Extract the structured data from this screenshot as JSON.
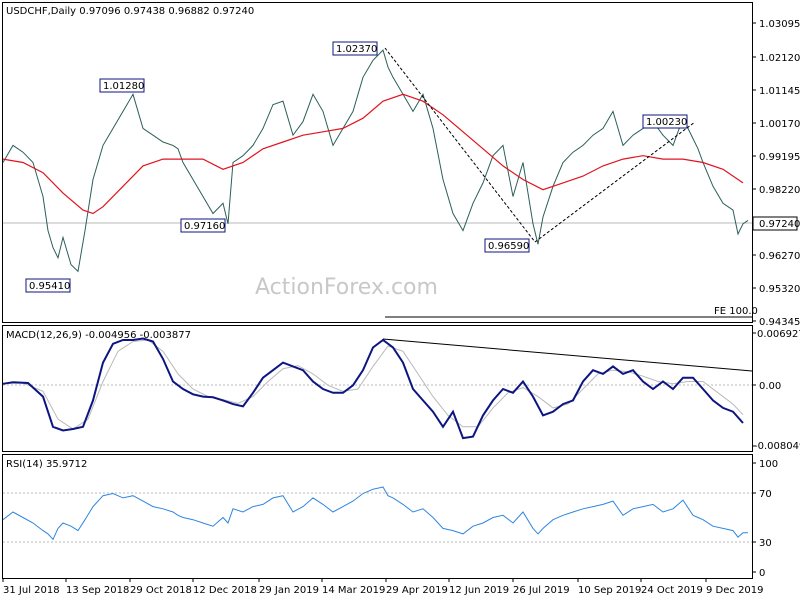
{
  "colors": {
    "price": "#2b5f5a",
    "ma": "#e0141e",
    "macd": "#0c1580",
    "signal": "#b9b9b9",
    "rsi": "#2f86e0",
    "lines": "#000000",
    "watermark": "#c8c8c8"
  },
  "chart_data": [
    {
      "type": "line",
      "title": "USDCHF,Daily  0.97096 0.97438 0.96882 0.97240",
      "watermark": "ActionForex.com",
      "ylim": [
        0.94345,
        1.03095
      ],
      "y_ticks": [
        "1.03095",
        "1.02120",
        "1.01145",
        "1.00170",
        "0.99195",
        "0.98220",
        "0.97245",
        "0.96270",
        "0.95320",
        "0.94345"
      ],
      "x_ticks": [
        "31 Jul 2018",
        "13 Sep 2018",
        "29 Oct 2018",
        "12 Dec 2018",
        "29 Jan 2019",
        "14 Mar 2019",
        "29 Apr 2019",
        "12 Jun 2019",
        "26 Jul 2019",
        "10 Sep 2019",
        "24 Oct 2019",
        "9 Dec 2019"
      ],
      "current_price": "0.97240",
      "annotations": [
        "1.02370",
        "1.01280",
        "0.97160",
        "0.95410",
        "0.96590",
        "1.00230",
        "FE 100.0"
      ],
      "series": [
        {
          "key": "price",
          "x": [
            0,
            10,
            20,
            30,
            40,
            45,
            50,
            55,
            60,
            68,
            75,
            82,
            90,
            100,
            110,
            120,
            130,
            140,
            150,
            160,
            170,
            175,
            180,
            190,
            200,
            210,
            220,
            225,
            230,
            240,
            250,
            260,
            270,
            280,
            290,
            300,
            310,
            320,
            330,
            340,
            350,
            360,
            370,
            380,
            385,
            390,
            400,
            410,
            420,
            430,
            440,
            450,
            460,
            470,
            480,
            490,
            500,
            510,
            520,
            530,
            535,
            540,
            550,
            560,
            570,
            580,
            590,
            600,
            610,
            620,
            630,
            640,
            650,
            660,
            670,
            680,
            690,
            695,
            700,
            710,
            720,
            730,
            735,
            740,
            745
          ],
          "values": [
            0.99,
            0.995,
            0.993,
            0.99,
            0.98,
            0.97,
            0.965,
            0.962,
            0.968,
            0.96,
            0.958,
            0.97,
            0.985,
            0.995,
            1.0,
            1.005,
            1.01,
            1.0,
            0.998,
            0.996,
            0.995,
            0.994,
            0.99,
            0.985,
            0.98,
            0.975,
            0.978,
            0.972,
            0.99,
            0.992,
            0.995,
            1.0,
            1.007,
            1.008,
            0.998,
            1.002,
            1.01,
            1.005,
            0.995,
            1.0,
            1.005,
            1.015,
            1.02,
            1.023,
            1.018,
            1.015,
            1.01,
            1.005,
            1.01,
            1.0,
            0.985,
            0.975,
            0.97,
            0.978,
            0.984,
            0.992,
            0.995,
            0.98,
            0.99,
            0.972,
            0.966,
            0.974,
            0.983,
            0.99,
            0.993,
            0.995,
            0.998,
            1.0,
            1.005,
            0.995,
            0.998,
            1.0,
            1.002,
            0.998,
            0.995,
            1.003,
            0.997,
            0.994,
            0.99,
            0.983,
            0.978,
            0.976,
            0.969,
            0.972,
            0.973
          ]
        },
        {
          "key": "ma",
          "x": [
            0,
            20,
            40,
            60,
            80,
            90,
            100,
            120,
            140,
            160,
            180,
            200,
            220,
            240,
            260,
            280,
            300,
            320,
            340,
            360,
            380,
            400,
            420,
            440,
            460,
            480,
            500,
            520,
            540,
            560,
            580,
            600,
            620,
            640,
            660,
            680,
            700,
            720,
            740
          ],
          "values": [
            0.991,
            0.99,
            0.987,
            0.981,
            0.976,
            0.975,
            0.977,
            0.983,
            0.989,
            0.991,
            0.991,
            0.991,
            0.988,
            0.99,
            0.994,
            0.996,
            0.998,
            0.999,
            1.0,
            1.003,
            1.008,
            1.01,
            1.008,
            1.004,
            0.999,
            0.994,
            0.989,
            0.985,
            0.982,
            0.984,
            0.986,
            0.989,
            0.991,
            0.992,
            0.991,
            0.991,
            0.99,
            0.988,
            0.984
          ]
        }
      ]
    },
    {
      "type": "line",
      "title": "MACD(12,26,9) -0.004956 -0.003877",
      "ylim": [
        -0.008049,
        0.006927
      ],
      "y_ticks": [
        "0.006927",
        "0.00",
        "-0.008049"
      ],
      "series": [
        {
          "key": "macd",
          "x": [
            0,
            10,
            25,
            40,
            50,
            60,
            70,
            80,
            90,
            100,
            110,
            120,
            130,
            140,
            150,
            160,
            170,
            180,
            190,
            200,
            210,
            220,
            230,
            240,
            250,
            260,
            270,
            280,
            290,
            300,
            310,
            320,
            330,
            340,
            350,
            360,
            370,
            380,
            390,
            400,
            410,
            420,
            430,
            440,
            450,
            460,
            470,
            480,
            490,
            500,
            510,
            520,
            530,
            540,
            550,
            560,
            570,
            580,
            590,
            600,
            610,
            620,
            630,
            640,
            650,
            660,
            670,
            680,
            690,
            700,
            710,
            720,
            730,
            740
          ],
          "values": [
            0.0002,
            0.0004,
            0.0003,
            -0.0015,
            -0.0055,
            -0.006,
            -0.0058,
            -0.0055,
            -0.002,
            0.003,
            0.0055,
            0.006,
            0.006,
            0.0062,
            0.0058,
            0.0035,
            0.0005,
            -0.0005,
            -0.0012,
            -0.0015,
            -0.0016,
            -0.002,
            -0.0025,
            -0.0028,
            -0.001,
            0.001,
            0.002,
            0.003,
            0.0025,
            0.002,
            0.0005,
            -0.0005,
            -0.001,
            -0.001,
            0.0,
            0.002,
            0.005,
            0.006,
            0.005,
            0.003,
            -0.0005,
            -0.002,
            -0.0035,
            -0.0055,
            -0.0035,
            -0.007,
            -0.0068,
            -0.004,
            -0.002,
            -0.0005,
            -0.001,
            0.0005,
            -0.0015,
            -0.004,
            -0.0035,
            -0.0025,
            -0.002,
            0.0005,
            0.002,
            0.0015,
            0.0025,
            0.0015,
            0.002,
            0.0005,
            -0.0005,
            0.0005,
            -0.0005,
            0.001,
            0.001,
            -0.0005,
            -0.002,
            -0.003,
            -0.0035,
            -0.005
          ]
        },
        {
          "key": "signal",
          "x": [
            0,
            20,
            40,
            55,
            70,
            85,
            100,
            115,
            130,
            145,
            160,
            175,
            190,
            205,
            220,
            235,
            250,
            265,
            280,
            295,
            310,
            325,
            340,
            355,
            370,
            385,
            400,
            415,
            430,
            445,
            460,
            475,
            490,
            505,
            520,
            535,
            550,
            565,
            580,
            595,
            610,
            625,
            640,
            655,
            670,
            685,
            700,
            715,
            730,
            740
          ],
          "values": [
            0.0002,
            0.0003,
            -0.0008,
            -0.0045,
            -0.0058,
            -0.0045,
            0.0005,
            0.0045,
            0.0058,
            0.006,
            0.0045,
            0.0015,
            -0.0005,
            -0.0015,
            -0.0019,
            -0.0024,
            -0.0015,
            0.0005,
            0.0022,
            0.0026,
            0.0015,
            0.0,
            -0.0008,
            -0.0005,
            0.0025,
            0.0052,
            0.0045,
            0.0015,
            -0.0015,
            -0.004,
            -0.0055,
            -0.0055,
            -0.003,
            -0.001,
            -0.0003,
            -0.0015,
            -0.003,
            -0.0025,
            -0.0005,
            0.0015,
            0.002,
            0.0018,
            0.0012,
            0.0005,
            0.0002,
            0.0005,
            0.0005,
            -0.001,
            -0.0025,
            -0.0039
          ]
        }
      ]
    },
    {
      "type": "line",
      "title": "RSI(14) 35.9712",
      "ylim": [
        0,
        100
      ],
      "y_ticks": [
        "100",
        "70",
        "30",
        "0"
      ],
      "series": [
        {
          "key": "rsi",
          "x": [
            0,
            10,
            20,
            30,
            40,
            45,
            50,
            55,
            60,
            68,
            75,
            82,
            90,
            100,
            110,
            120,
            130,
            140,
            150,
            160,
            170,
            175,
            180,
            190,
            200,
            210,
            220,
            225,
            230,
            240,
            250,
            260,
            270,
            280,
            290,
            300,
            310,
            320,
            330,
            340,
            350,
            360,
            370,
            380,
            385,
            390,
            400,
            410,
            420,
            430,
            440,
            450,
            460,
            470,
            480,
            490,
            500,
            510,
            520,
            530,
            535,
            540,
            550,
            560,
            570,
            580,
            590,
            600,
            610,
            620,
            630,
            640,
            650,
            660,
            670,
            680,
            690,
            695,
            700,
            710,
            720,
            730,
            735,
            740,
            745
          ],
          "values": [
            48,
            55,
            50,
            45,
            38,
            35,
            30,
            40,
            45,
            42,
            38,
            48,
            60,
            70,
            72,
            68,
            70,
            65,
            60,
            58,
            55,
            52,
            50,
            48,
            45,
            42,
            50,
            45,
            58,
            55,
            60,
            62,
            68,
            70,
            55,
            60,
            68,
            62,
            55,
            60,
            65,
            72,
            76,
            78,
            70,
            68,
            62,
            55,
            58,
            50,
            40,
            38,
            35,
            42,
            45,
            50,
            52,
            45,
            55,
            40,
            35,
            40,
            48,
            52,
            55,
            58,
            60,
            62,
            65,
            52,
            58,
            60,
            62,
            55,
            58,
            66,
            52,
            50,
            48,
            42,
            40,
            38,
            32,
            36,
            36
          ]
        }
      ]
    }
  ]
}
